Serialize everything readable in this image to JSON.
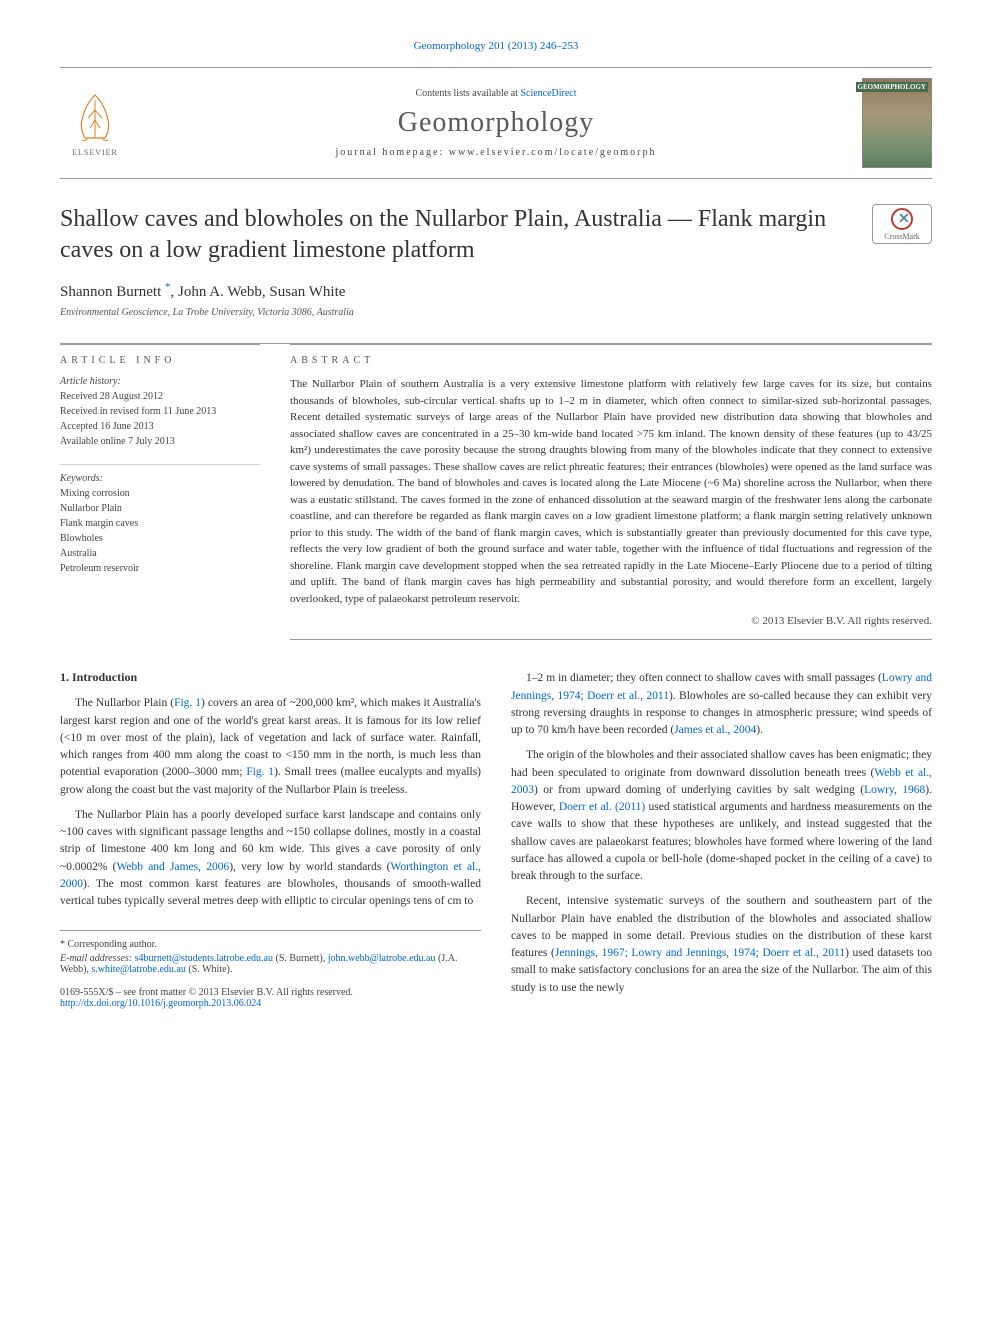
{
  "header": {
    "top_link": "Geomorphology 201 (2013) 246–253",
    "contents_text": "Contents lists available at ",
    "contents_link": "ScienceDirect",
    "journal_name": "Geomorphology",
    "homepage_label": "journal homepage: ",
    "homepage_url": "www.elsevier.com/locate/geomorph",
    "elsevier_label": "ELSEVIER",
    "cover_label": "GEOMORPHOLOGY"
  },
  "article": {
    "title": "Shallow caves and blowholes on the Nullarbor Plain, Australia — Flank margin caves on a low gradient limestone platform",
    "crossmark_label": "CrossMark",
    "authors": "Shannon Burnett ",
    "author_mark": "*",
    "authors_rest": ", John A. Webb, Susan White",
    "affiliation": "Environmental Geoscience, La Trobe University, Victoria 3086, Australia"
  },
  "info": {
    "heading": "ARTICLE INFO",
    "history_label": "Article history:",
    "history": [
      "Received 28 August 2012",
      "Received in revised form 11 June 2013",
      "Accepted 16 June 2013",
      "Available online 7 July 2013"
    ],
    "keywords_label": "Keywords:",
    "keywords": [
      "Mixing corrosion",
      "Nullarbor Plain",
      "Flank margin caves",
      "Blowholes",
      "Australia",
      "Petroleum reservoir"
    ]
  },
  "abstract": {
    "heading": "ABSTRACT",
    "text": "The Nullarbor Plain of southern Australia is a very extensive limestone platform with relatively few large caves for its size, but contains thousands of blowholes, sub-circular vertical shafts up to 1–2 m in diameter, which often connect to similar-sized sub-horizontal passages. Recent detailed systematic surveys of large areas of the Nullarbor Plain have provided new distribution data showing that blowholes and associated shallow caves are concentrated in a 25–30 km-wide band located >75 km inland. The known density of these features (up to 43/25 km²) underestimates the cave porosity because the strong draughts blowing from many of the blowholes indicate that they connect to extensive cave systems of small passages. These shallow caves are relict phreatic features; their entrances (blowholes) were opened as the land surface was lowered by denudation. The band of blowholes and caves is located along the Late Miocene (~6 Ma) shoreline across the Nullarbor, when there was a eustatic stillstand. The caves formed in the zone of enhanced dissolution at the seaward margin of the freshwater lens along the carbonate coastline, and can therefore be regarded as flank margin caves on a low gradient limestone platform; a flank margin setting relatively unknown prior to this study. The width of the band of flank margin caves, which is substantially greater than previously documented for this cave type, reflects the very low gradient of both the ground surface and water table, together with the influence of tidal fluctuations and regression of the shoreline. Flank margin cave development stopped when the sea retreated rapidly in the Late Miocene–Early Pliocene due to a period of tilting and uplift. The band of flank margin caves has high permeability and substantial porosity, and would therefore form an excellent, largely overlooked, type of palaeokarst petroleum reservoir.",
    "copyright": "© 2013 Elsevier B.V. All rights reserved."
  },
  "body": {
    "section1_heading": "1. Introduction",
    "col1_paras": [
      "The Nullarbor Plain (<span class=\"ref-link\">Fig. 1</span>) covers an area of ~200,000 km², which makes it Australia's largest karst region and one of the world's great karst areas. It is famous for its low relief (<10 m over most of the plain), lack of vegetation and lack of surface water. Rainfall, which ranges from 400 mm along the coast to <150 mm in the north, is much less than potential evaporation (2000–3000 mm; <span class=\"ref-link\">Fig. 1</span>). Small trees (mallee eucalypts and myalls) grow along the coast but the vast majority of the Nullarbor Plain is treeless.",
      "The Nullarbor Plain has a poorly developed surface karst landscape and contains only ~100 caves with significant passage lengths and ~150 collapse dolines, mostly in a coastal strip of limestone 400 km long and 60 km wide. This gives a cave porosity of only ~0.0002% (<span class=\"ref-link\">Webb and James, 2006</span>), very low by world standards (<span class=\"ref-link\">Worthington et al., 2000</span>). The most common karst features are blowholes, thousands of smooth-walled vertical tubes typically several metres deep with elliptic to circular openings tens of cm to"
    ],
    "col2_paras": [
      "1–2 m in diameter; they often connect to shallow caves with small passages (<span class=\"ref-link\">Lowry and Jennings, 1974; Doerr et al., 2011</span>). Blowholes are so-called because they can exhibit very strong reversing draughts in response to changes in atmospheric pressure; wind speeds of up to 70 km/h have been recorded (<span class=\"ref-link\">James et al., 2004</span>).",
      "The origin of the blowholes and their associated shallow caves has been enigmatic; they had been speculated to originate from downward dissolution beneath trees (<span class=\"ref-link\">Webb et al., 2003</span>) or from upward doming of underlying cavities by salt wedging (<span class=\"ref-link\">Lowry, 1968</span>). However, <span class=\"ref-link\">Doerr et al. (2011)</span> used statistical arguments and hardness measurements on the cave walls to show that these hypotheses are unlikely, and instead suggested that the shallow caves are palaeokarst features; blowholes have formed where lowering of the land surface has allowed a cupola or bell-hole (dome-shaped pocket in the ceiling of a cave) to break through to the surface.",
      "Recent, intensive systematic surveys of the southern and southeastern part of the Nullarbor Plain have enabled the distribution of the blowholes and associated shallow caves to be mapped in some detail. Previous studies on the distribution of these karst features (<span class=\"ref-link\">Jennings, 1967; Lowry and Jennings, 1974; Doerr et al., 2011</span>) used datasets too small to make satisfactory conclusions for an area the size of the Nullarbor. The aim of this study is to use the newly"
    ]
  },
  "footer": {
    "corr_label": "* Corresponding author.",
    "email_label": "E-mail addresses: ",
    "emails": [
      {
        "addr": "s4burnett@students.latrobe.edu.au",
        "who": " (S. Burnett), "
      },
      {
        "addr": "john.webb@latrobe.edu.au",
        "who": " (J.A. Webb), "
      },
      {
        "addr": "s.white@latrobe.edu.au",
        "who": " (S. White)."
      }
    ],
    "issn_line": "0169-555X/$ – see front matter © 2013 Elsevier B.V. All rights reserved.",
    "doi": "http://dx.doi.org/10.1016/j.geomorph.2013.06.024"
  },
  "colors": {
    "link": "#0066cc",
    "text": "#333333",
    "muted": "#555555",
    "border": "#999999"
  }
}
